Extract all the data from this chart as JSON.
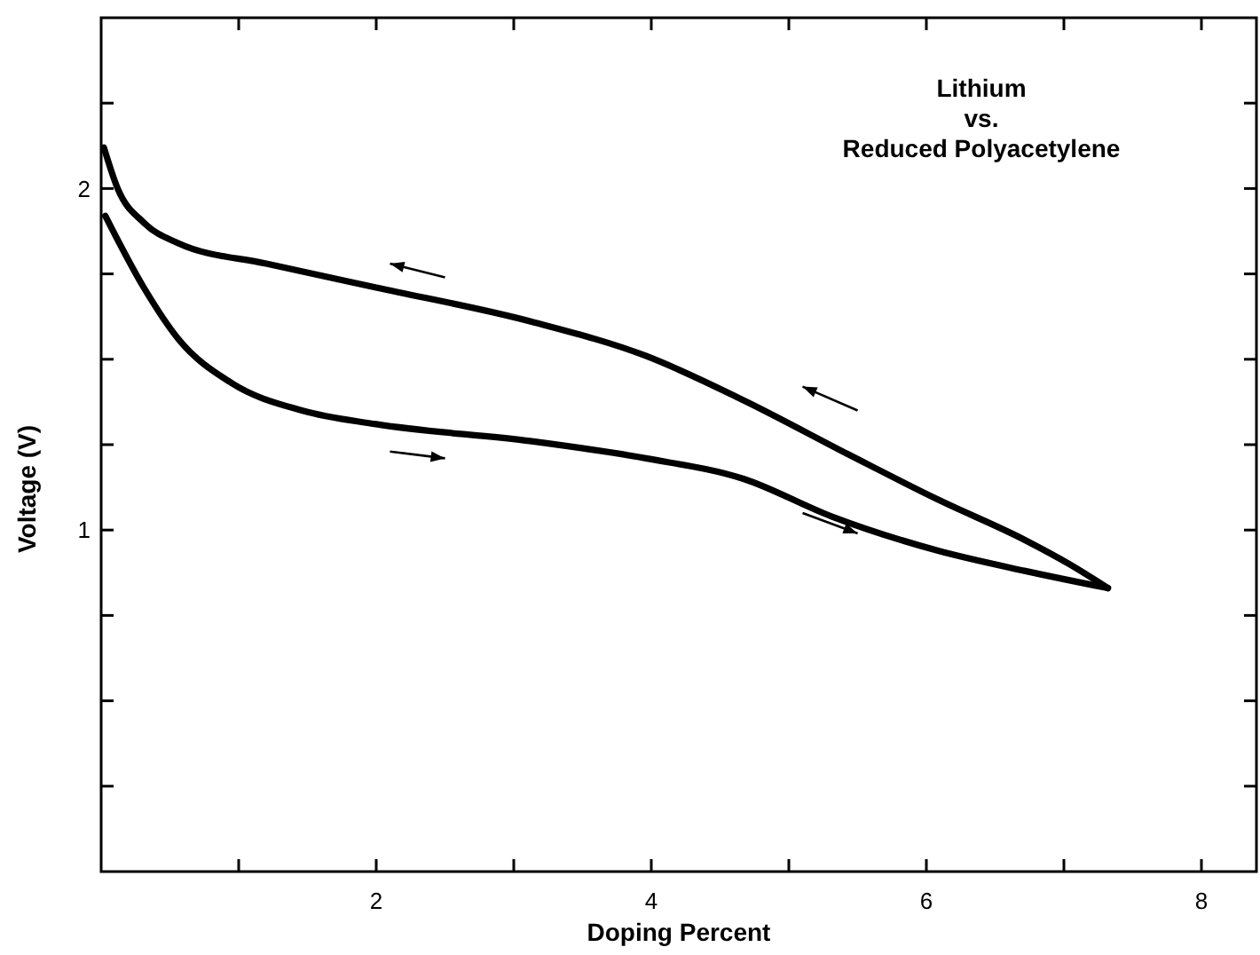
{
  "chart_data": {
    "type": "line",
    "xlabel": "Doping Percent",
    "ylabel": "Voltage (V)",
    "annotations": [
      "Lithium\nvs.\nReduced Polyacetylene"
    ],
    "xlim": [
      0,
      8.4
    ],
    "xticks": [
      {
        "value": 1,
        "label": null
      },
      2,
      {
        "value": 3,
        "label": null
      },
      4,
      {
        "value": 5,
        "label": null
      },
      6,
      {
        "value": 7,
        "label": null
      },
      8
    ],
    "ylim": [
      0,
      2.5
    ],
    "yticks": [
      {
        "value": 0.25,
        "label": null
      },
      {
        "value": 0.5,
        "label": null
      },
      {
        "value": 0.75,
        "label": null
      },
      1,
      {
        "value": 1.25,
        "label": null
      },
      {
        "value": 1.5,
        "label": null
      },
      {
        "value": 1.75,
        "label": null
      },
      2,
      {
        "value": 2.25,
        "label": null
      }
    ],
    "grid": false,
    "marker": "none",
    "line_style": "solid",
    "series": [
      {
        "color": "#000000",
        "x": [
          0.02,
          0.12,
          0.31,
          0.56,
          1.2,
          2.0,
          3.13,
          3.96,
          4.67,
          5.44,
          6.08,
          6.72,
          7.04,
          7.32
        ],
        "values": [
          2.12,
          2.0,
          1.9,
          1.84,
          1.78,
          1.71,
          1.61,
          1.51,
          1.38,
          1.22,
          1.09,
          0.97,
          0.9,
          0.83
        ]
      },
      {
        "color": "#000000",
        "x": [
          0.03,
          0.31,
          0.56,
          0.95,
          1.46,
          2.0,
          3.13,
          3.96,
          4.67,
          5.31,
          6.08,
          6.72,
          7.32
        ],
        "values": [
          1.92,
          1.71,
          1.56,
          1.43,
          1.35,
          1.31,
          1.26,
          1.21,
          1.15,
          1.04,
          0.94,
          0.88,
          0.83
        ]
      }
    ]
  }
}
